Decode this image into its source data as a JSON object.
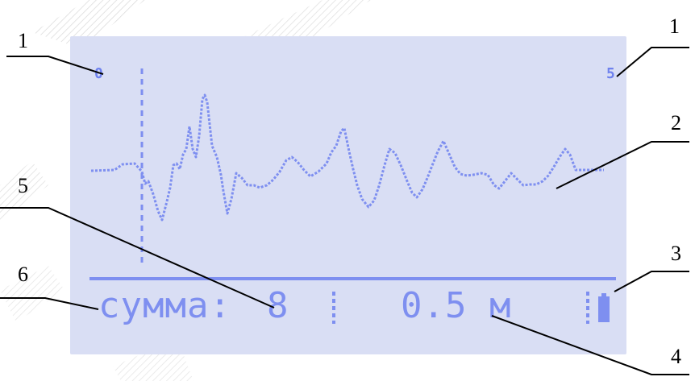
{
  "callouts": {
    "c1_left": "1",
    "c1_right": "1",
    "c2": "2",
    "c3": "3",
    "c4": "4",
    "c5": "5",
    "c6": "6"
  },
  "scale": {
    "left": "0",
    "right": "5"
  },
  "status_bar": {
    "mode_label": "сумма:",
    "sum_count": "8",
    "distance": "0.5 м"
  },
  "icons": {
    "battery": "battery-icon"
  },
  "colors": {
    "lcd_background": "#d9def4",
    "lcd_foreground": "#7e8ff0"
  }
}
